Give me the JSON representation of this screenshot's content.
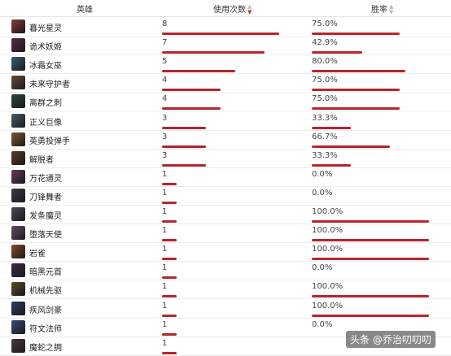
{
  "header": {
    "hero_label": "英雄",
    "uses_label": "使用次数",
    "winrate_label": "胜率",
    "sort_up_icon": "▲",
    "sort_down_icon": "▼"
  },
  "colors": {
    "bar": "#b8252b",
    "sort_active": "#c0392b"
  },
  "max_uses": 8,
  "rows": [
    {
      "name": "暮光星灵",
      "uses": "8",
      "winrate": "75.0%",
      "uses_value": 8,
      "winrate_value": 75.0,
      "avatar_color": "#8a3a3a"
    },
    {
      "name": "诡术妖姬",
      "uses": "7",
      "winrate": "42.9%",
      "uses_value": 7,
      "winrate_value": 42.9,
      "avatar_color": "#5a2a4a"
    },
    {
      "name": "冰霜女巫",
      "uses": "5",
      "winrate": "80.0%",
      "uses_value": 5,
      "winrate_value": 80.0,
      "avatar_color": "#3a5a7a"
    },
    {
      "name": "未来守护者",
      "uses": "4",
      "winrate": "75.0%",
      "uses_value": 4,
      "winrate_value": 75.0,
      "avatar_color": "#6a4a3a"
    },
    {
      "name": "离群之刺",
      "uses": "4",
      "winrate": "75.0%",
      "uses_value": 4,
      "winrate_value": 75.0,
      "avatar_color": "#2a4a3a"
    },
    {
      "name": "正义巨像",
      "uses": "3",
      "winrate": "33.3%",
      "uses_value": 3,
      "winrate_value": 33.3,
      "avatar_color": "#4a5a6a"
    },
    {
      "name": "英勇投弹手",
      "uses": "3",
      "winrate": "66.7%",
      "uses_value": 3,
      "winrate_value": 66.7,
      "avatar_color": "#7a5a2a"
    },
    {
      "name": "解脱者",
      "uses": "3",
      "winrate": "33.3%",
      "uses_value": 3,
      "winrate_value": 33.3,
      "avatar_color": "#5a3a2a"
    },
    {
      "name": "万花通灵",
      "uses": "1",
      "winrate": "0.0%",
      "uses_value": 1,
      "winrate_value": 0.0,
      "avatar_color": "#6a3a5a"
    },
    {
      "name": "刀锋舞者",
      "uses": "1",
      "winrate": "0.0%",
      "uses_value": 1,
      "winrate_value": 0.0,
      "avatar_color": "#3a3a4a"
    },
    {
      "name": "发条魔灵",
      "uses": "1",
      "winrate": "100.0%",
      "uses_value": 1,
      "winrate_value": 100.0,
      "avatar_color": "#4a4a5a"
    },
    {
      "name": "堕落天使",
      "uses": "1",
      "winrate": "100.0%",
      "uses_value": 1,
      "winrate_value": 100.0,
      "avatar_color": "#6a4a6a"
    },
    {
      "name": "岩雀",
      "uses": "1",
      "winrate": "100.0%",
      "uses_value": 1,
      "winrate_value": 100.0,
      "avatar_color": "#8a4a2a"
    },
    {
      "name": "暗黑元首",
      "uses": "1",
      "winrate": "0.0%",
      "uses_value": 1,
      "winrate_value": 0.0,
      "avatar_color": "#3a2a4a"
    },
    {
      "name": "机械先驱",
      "uses": "1",
      "winrate": "100.0%",
      "uses_value": 1,
      "winrate_value": 100.0,
      "avatar_color": "#5a4a2a"
    },
    {
      "name": "疾风剑豪",
      "uses": "1",
      "winrate": "100.0%",
      "uses_value": 1,
      "winrate_value": 100.0,
      "avatar_color": "#2a3a6a"
    },
    {
      "name": "符文法师",
      "uses": "1",
      "winrate": "0.0%",
      "uses_value": 1,
      "winrate_value": 0.0,
      "avatar_color": "#3a4a7a"
    },
    {
      "name": "魔蛇之拥",
      "uses": "1",
      "winrate": "",
      "uses_value": 1,
      "winrate_value": null,
      "avatar_color": "#4a3a3a"
    }
  ],
  "watermark": {
    "text": "头条 @乔治叨叨叨"
  }
}
